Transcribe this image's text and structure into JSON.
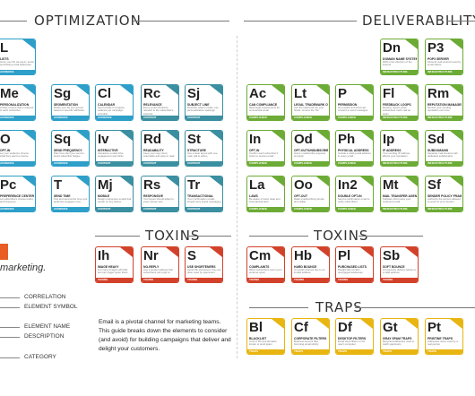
{
  "sections": {
    "optimization": "OPTIMIZATION",
    "deliverability": "DELIVERABILITY",
    "toxins_left": "TOXINS",
    "toxins_right": "TOXINS",
    "traps": "TRAPS"
  },
  "tiles": [
    {
      "sym": "L",
      "name": "LISTS",
      "desc": "Grow your list via opt-in; avoid purchasing email addresses",
      "cat": "AUDIENCE",
      "color": "blue"
    },
    {
      "sym": "Me",
      "name": "PERSONALIZATION",
      "desc": "Create content that is relevant to each subscriber",
      "cat": "AUDIENCE",
      "color": "blue"
    },
    {
      "sym": "Sg",
      "name": "SEGMENTATION",
      "desc": "Divide your list into groups based on specific attributes",
      "cat": "AUDIENCE",
      "color": "blue"
    },
    {
      "sym": "Cl",
      "name": "CALENDAR",
      "desc": "Send emails in a logical cadence per campaign schedule",
      "cat": "AUDIENCE",
      "color": "blue"
    },
    {
      "sym": "Rc",
      "name": "RELEVANCE",
      "desc": "Every email should be relevant to the subscriber's interests",
      "cat": "CONTENT",
      "color": "teal"
    },
    {
      "sym": "Sj",
      "name": "SUBJECT LINE",
      "desc": "Describe what is inside; use personalization sparingly",
      "cat": "CONTENT",
      "color": "teal"
    },
    {
      "sym": "O",
      "name": "OPT-IN",
      "desc": "Let your audience choose what they want to receive",
      "cat": "AUDIENCE",
      "color": "blue"
    },
    {
      "sym": "Sq",
      "name": "SEND FREQUENCY",
      "desc": "Plan how often you send to avoid subscriber fatigue",
      "cat": "AUDIENCE",
      "color": "blue"
    },
    {
      "sym": "Iv",
      "name": "INTERACTIVE",
      "desc": "Interactive emails drive engagement and clicks",
      "cat": "CONTENT",
      "color": "teal"
    },
    {
      "sym": "Rd",
      "name": "READABILITY",
      "desc": "Keep your copy short, scannable and easy to read",
      "cat": "CONTENT",
      "color": "teal"
    },
    {
      "sym": "St",
      "name": "STRUCTURE",
      "desc": "Use a clear layout with one main call to action",
      "cat": "CONTENT",
      "color": "teal"
    },
    {
      "sym": "Pc",
      "name": "PREFERENCE CENTER",
      "desc": "Let subscribers choose topics and frequency",
      "cat": "AUDIENCE",
      "color": "blue"
    },
    {
      "sym": "T",
      "name": "SEND TIME",
      "desc": "Test and send at the time your audience engages most",
      "cat": "AUDIENCE",
      "color": "blue"
    },
    {
      "sym": "Mj",
      "name": "MOBILE",
      "desc": "Design responsive emails that render on any device",
      "cat": "CONTENT",
      "color": "teal"
    },
    {
      "sym": "Rs",
      "name": "RESPONSIVE",
      "desc": "Your layout should adapt to every screen size",
      "cat": "CONTENT",
      "color": "teal"
    },
    {
      "sym": "Tr",
      "name": "TRANSACTIONAL",
      "desc": "Your confirmation emails should carry brand messaging",
      "cat": "CONTENT",
      "color": "teal"
    },
    {
      "sym": "Ih",
      "name": "IMAGE HEAVY",
      "desc": "Too many images with little text can trigger spam filters",
      "cat": "TOXINS",
      "color": "red"
    },
    {
      "sym": "Nr",
      "name": "NO-REPLY",
      "desc": "Use a sender address that subscribers can reply to",
      "cat": "TOXINS",
      "color": "red"
    },
    {
      "sym": "S",
      "name": "USE SHORTENERS",
      "desc": "Avoid link shorteners; they are often used by spammers",
      "cat": "TOXINS",
      "color": "red"
    },
    {
      "sym": "Dn",
      "name": "DOMAIN NAME SYSTEM",
      "desc": "DNS is the directory of the internet",
      "cat": "INFRASTRUCTURE",
      "color": "green"
    },
    {
      "sym": "P3",
      "name": "POP3 SERVER",
      "desc": "Inbound mail protocol used by email clients",
      "cat": "INFRASTRUCTURE",
      "color": "green"
    },
    {
      "sym": "Ac",
      "name": "CAN COMPLIANCE",
      "desc": "Meet legal requirements for commercial email",
      "cat": "COMPLIANCE",
      "color": "green"
    },
    {
      "sym": "Lt",
      "name": "LEGAL TRADEMARK OWNERSHIP",
      "desc": "Use the trademark for your brand; remove the TM",
      "cat": "COMPLIANCE",
      "color": "green"
    },
    {
      "sym": "P",
      "name": "PERMISSION",
      "desc": "Get explicit and informed consent to send messages",
      "cat": "COMPLIANCE",
      "color": "green"
    },
    {
      "sym": "Fl",
      "name": "FEEDBACK LOOPS",
      "desc": "Receive reports when subscribers mark mail as spam",
      "cat": "INFRASTRUCTURE",
      "color": "green"
    },
    {
      "sym": "Rm",
      "name": "REPUTATION MANAGEMENT",
      "desc": "Monitor your sending reputation over time",
      "cat": "INFRASTRUCTURE",
      "color": "green"
    },
    {
      "sym": "In",
      "name": "OPT-IN",
      "desc": "Confirm each subscriber's intent to receive email",
      "cat": "COMPLIANCE",
      "color": "green"
    },
    {
      "sym": "Od",
      "name": "OPT-OUT/UNSUBSCRIBE",
      "desc": "Honor unsubscribe requests promptly",
      "cat": "COMPLIANCE",
      "color": "green"
    },
    {
      "sym": "Ph",
      "name": "PHYSICAL ADDRESS",
      "desc": "Include a valid postal address in every email",
      "cat": "COMPLIANCE",
      "color": "green"
    },
    {
      "sym": "Ip",
      "name": "IP ADDRESS",
      "desc": "Your sending IP address affects your reputation",
      "cat": "INFRASTRUCTURE",
      "color": "green"
    },
    {
      "sym": "Sd",
      "name": "SUBDOMAINS",
      "desc": "Separate mail streams with dedicated subdomains",
      "cat": "INFRASTRUCTURE",
      "color": "green"
    },
    {
      "sym": "La",
      "name": "LAWS",
      "desc": "Be aware of local, state and international laws",
      "cat": "COMPLIANCE",
      "color": "green"
    },
    {
      "sym": "Oo",
      "name": "OPT-OUT",
      "desc": "Make unsubscribing simple and visible",
      "cat": "COMPLIANCE",
      "color": "green"
    },
    {
      "sym": "In2",
      "name": "DOUBLE OPT-IN",
      "desc": "Send a confirmation email to verify subscribers",
      "cat": "COMPLIANCE",
      "color": "green"
    },
    {
      "sym": "Mt",
      "name": "MAIL TRANSFER AGENT",
      "desc": "Software that routes your outbound email",
      "cat": "INFRASTRUCTURE",
      "color": "green"
    },
    {
      "sym": "Sf",
      "name": "SENDER POLICY FRAMEWORK",
      "desc": "Authorize the servers allowed to send for your domain",
      "cat": "INFRASTRUCTURE",
      "color": "green"
    },
    {
      "sym": "Cm",
      "name": "COMPLAINTS",
      "desc": "When subscribers report your email as spam",
      "cat": "TOXINS",
      "color": "red"
    },
    {
      "sym": "Hb",
      "name": "HARD BOUNCE",
      "desc": "An email returned due to an invalid address",
      "cat": "TOXINS",
      "color": "red"
    },
    {
      "sym": "Pl",
      "name": "PURCHASED LISTS",
      "desc": "Bought lists contain unengaged addresses",
      "cat": "TOXINS",
      "color": "red"
    },
    {
      "sym": "Sb",
      "name": "SOFT BOUNCE",
      "desc": "A temporary delivery failure to a valid address",
      "cat": "TOXINS",
      "color": "red"
    },
    {
      "sym": "Bl",
      "name": "BLACKLIST",
      "desc": "A list of IPs and domains known to send spam",
      "cat": "TRAPS",
      "color": "yellow"
    },
    {
      "sym": "Cf",
      "name": "CORPORATE FILTERS",
      "desc": "Business servers filter incoming email strictly",
      "cat": "TRAPS",
      "color": "yellow"
    },
    {
      "sym": "Df",
      "name": "DESKTOP FILTERS",
      "desc": "Email client filters on the user's computer",
      "cat": "TRAPS",
      "color": "yellow"
    },
    {
      "sym": "Gt",
      "name": "GRAY SPAM TRAPS",
      "desc": "Recycled addresses used to catch spammers",
      "cat": "TRAPS",
      "color": "yellow"
    },
    {
      "sym": "Pt",
      "name": "PRISTINE TRAPS",
      "desc": "Addresses never used by a real person",
      "cat": "TRAPS",
      "color": "yellow"
    }
  ],
  "brand": {
    "tagline": "marketing."
  },
  "legend": {
    "correlation": "CORRELATION",
    "element_symbol": "ELEMENT SYMBOL",
    "element_name": "ELEMENT NAME",
    "description": "DESCRIPTION",
    "category": "CATEGORY"
  },
  "intro": "Email is a pivotal channel for marketing teams. This guide breaks down the elements to consider (and avoid) for building campaigns that deliver and delight your customers.",
  "colors": {
    "audience": "#2d9fc8",
    "content": "#3a8fa0",
    "deliverability": "#6cab35",
    "toxins": "#d2422b",
    "traps": "#e8b511",
    "brand": "#e85d23"
  }
}
